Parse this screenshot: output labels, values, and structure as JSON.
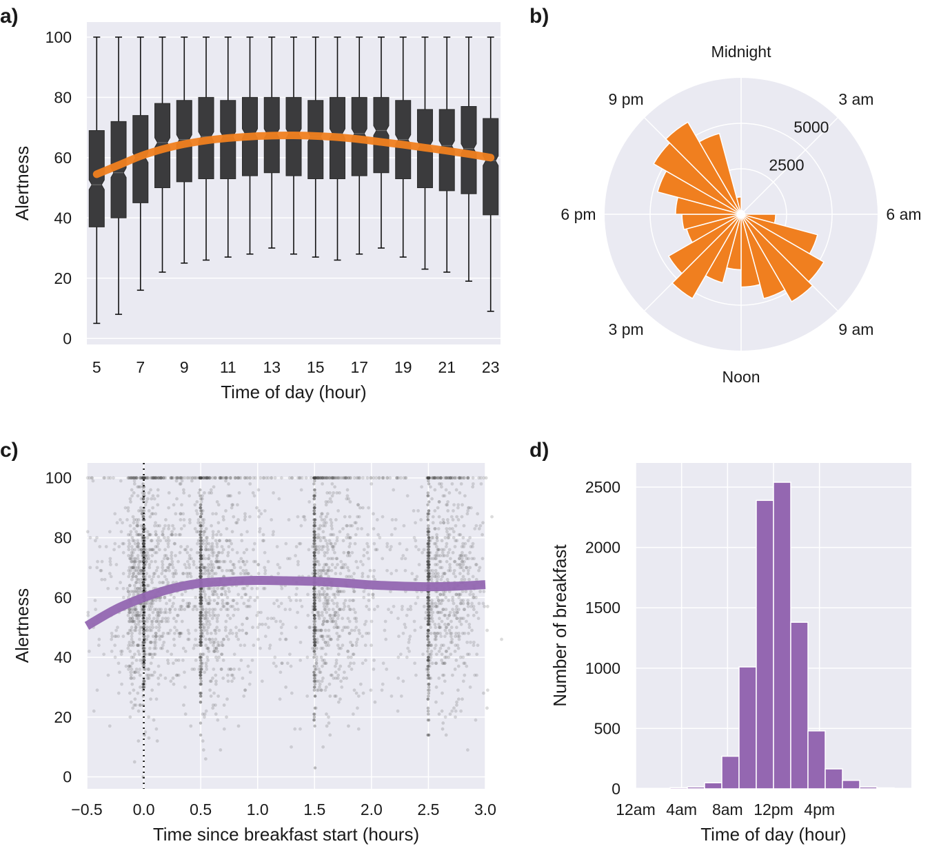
{
  "panels": {
    "a": {
      "label": "a)"
    },
    "b": {
      "label": "b)"
    },
    "c": {
      "label": "c)"
    },
    "d": {
      "label": "d)"
    }
  },
  "colors": {
    "background": "#eaeaf2",
    "grid": "#ffffff",
    "box": "#3b3b3d",
    "orange": "#f07f1f",
    "purple": "#9467b1",
    "points": "#4a4a4a"
  },
  "chart_data": [
    {
      "id": "a",
      "type": "box",
      "xlabel": "Time of day (hour)",
      "ylabel": "Alertness",
      "xlim": [
        4.55,
        23.45
      ],
      "ylim": [
        -2,
        105
      ],
      "xticks": [
        5,
        7,
        9,
        11,
        13,
        15,
        17,
        19,
        21,
        23
      ],
      "yticks": [
        0,
        20,
        40,
        60,
        80,
        100
      ],
      "grid": true,
      "notched": true,
      "boxes": [
        {
          "x": 5,
          "whislo": 5,
          "q1": 37,
          "med": 51,
          "q3": 69,
          "whishi": 100
        },
        {
          "x": 6,
          "whislo": 8,
          "q1": 40,
          "med": 55,
          "q3": 72,
          "whishi": 100
        },
        {
          "x": 7,
          "whislo": 16,
          "q1": 45,
          "med": 60,
          "q3": 74,
          "whishi": 100
        },
        {
          "x": 8,
          "whislo": 22,
          "q1": 50,
          "med": 65,
          "q3": 78,
          "whishi": 100
        },
        {
          "x": 9,
          "whislo": 25,
          "q1": 52,
          "med": 66,
          "q3": 79,
          "whishi": 100
        },
        {
          "x": 10,
          "whislo": 26,
          "q1": 53,
          "med": 67,
          "q3": 80,
          "whishi": 100
        },
        {
          "x": 11,
          "whislo": 27,
          "q1": 53,
          "med": 67,
          "q3": 79,
          "whishi": 100
        },
        {
          "x": 12,
          "whislo": 28,
          "q1": 54,
          "med": 68,
          "q3": 80,
          "whishi": 100
        },
        {
          "x": 13,
          "whislo": 30,
          "q1": 55,
          "med": 68,
          "q3": 80,
          "whishi": 100
        },
        {
          "x": 14,
          "whislo": 28,
          "q1": 54,
          "med": 68,
          "q3": 80,
          "whishi": 100
        },
        {
          "x": 15,
          "whislo": 27,
          "q1": 53,
          "med": 67,
          "q3": 79,
          "whishi": 100
        },
        {
          "x": 16,
          "whislo": 26,
          "q1": 53,
          "med": 68,
          "q3": 80,
          "whishi": 100
        },
        {
          "x": 17,
          "whislo": 28,
          "q1": 54,
          "med": 68,
          "q3": 80,
          "whishi": 100
        },
        {
          "x": 18,
          "whislo": 30,
          "q1": 55,
          "med": 69,
          "q3": 80,
          "whishi": 100
        },
        {
          "x": 19,
          "whislo": 27,
          "q1": 53,
          "med": 66,
          "q3": 79,
          "whishi": 100
        },
        {
          "x": 20,
          "whislo": 23,
          "q1": 50,
          "med": 64,
          "q3": 76,
          "whishi": 100
        },
        {
          "x": 21,
          "whislo": 22,
          "q1": 49,
          "med": 64,
          "q3": 76,
          "whishi": 100
        },
        {
          "x": 22,
          "whislo": 19,
          "q1": 48,
          "med": 63,
          "q3": 77,
          "whishi": 100
        },
        {
          "x": 23,
          "whislo": 9,
          "q1": 41,
          "med": 59,
          "q3": 73,
          "whishi": 100
        }
      ],
      "trend": {
        "color": "orange",
        "x": [
          5,
          6,
          7,
          8,
          9,
          10,
          11,
          12,
          13,
          14,
          15,
          16,
          17,
          18,
          19,
          20,
          21,
          22,
          23
        ],
        "y": [
          54.5,
          57.5,
          60.5,
          62.8,
          64.5,
          65.7,
          66.5,
          67,
          67.3,
          67.4,
          67.2,
          66.8,
          66.1,
          65.2,
          64.3,
          63.3,
          62.3,
          61.2,
          60
        ]
      }
    },
    {
      "id": "b",
      "type": "polar_bar",
      "direction": "clockwise",
      "zero_location": "top",
      "angle_labels": [
        "Midnight",
        "3 am",
        "6 am",
        "9 am",
        "Noon",
        "3 pm",
        "6 pm",
        "9 pm"
      ],
      "angle_positions_hours": [
        0,
        3,
        6,
        9,
        12,
        15,
        18,
        21
      ],
      "rmax": 7500,
      "rticks": [
        2500,
        5000
      ],
      "rtick_labels": [
        "2500",
        "5000"
      ],
      "hours": [
        0,
        1,
        2,
        3,
        4,
        5,
        6,
        7,
        8,
        9,
        10,
        11,
        12,
        13,
        14,
        15,
        16,
        17,
        18,
        19,
        20,
        21,
        22,
        23
      ],
      "values": [
        200,
        200,
        200,
        200,
        200,
        200,
        1900,
        4350,
        5250,
        5550,
        4800,
        4000,
        3050,
        3900,
        5350,
        4600,
        3100,
        3250,
        3600,
        4750,
        5550,
        5850,
        4600,
        950
      ],
      "color": "orange"
    },
    {
      "id": "c",
      "type": "scatter",
      "xlabel": "Time since breakfast start (hours)",
      "ylabel": "Alertness",
      "xlim": [
        -0.5,
        3.0
      ],
      "ylim": [
        -4,
        105
      ],
      "xticks": [
        -0.5,
        0.0,
        0.5,
        1.0,
        1.5,
        2.0,
        2.5,
        3.0
      ],
      "xtick_labels": [
        "−0.5",
        "0.0",
        "0.5",
        "1.0",
        "1.5",
        "2.0",
        "2.5",
        "3.0"
      ],
      "yticks": [
        0,
        20,
        40,
        60,
        80,
        100
      ],
      "grid": true,
      "vline_x": 0.0,
      "trend": {
        "color": "purple",
        "x": [
          -0.5,
          -0.25,
          0.0,
          0.25,
          0.5,
          0.75,
          1.0,
          1.25,
          1.5,
          1.75,
          2.0,
          2.25,
          2.5,
          2.75,
          3.0
        ],
        "y": [
          50.5,
          56,
          60,
          63,
          64.8,
          65.4,
          65.7,
          65.6,
          65.4,
          64.9,
          64.2,
          63.8,
          63.6,
          63.8,
          64.3
        ]
      }
    },
    {
      "id": "d",
      "type": "histogram",
      "xlabel": "Time of day (hour)",
      "ylabel": "Number of breakfast",
      "xlim": [
        0,
        24
      ],
      "ylim": [
        0,
        2700
      ],
      "xticks": [
        0,
        4,
        8,
        12,
        16
      ],
      "xtick_labels": [
        "12am",
        "4am",
        "8am",
        "12pm",
        "4pm"
      ],
      "yticks": [
        0,
        500,
        1000,
        1500,
        2000,
        2500
      ],
      "grid": true,
      "bin_edges": [
        0,
        1.5,
        3,
        4.5,
        6,
        7.5,
        9,
        10.5,
        12,
        13.5,
        15,
        16.5,
        18,
        19.5,
        21,
        22.5,
        24
      ],
      "bin_width": 1.5,
      "bin_starts": [
        0,
        1.5,
        3,
        4.5,
        6,
        7.5,
        9,
        10.5,
        12,
        13.5,
        15,
        16.5,
        18,
        19.5,
        21,
        22.5
      ],
      "counts": [
        4,
        4,
        10,
        15,
        50,
        270,
        1010,
        2390,
        2540,
        1380,
        480,
        165,
        70,
        15,
        8,
        4
      ],
      "color": "purple"
    }
  ]
}
